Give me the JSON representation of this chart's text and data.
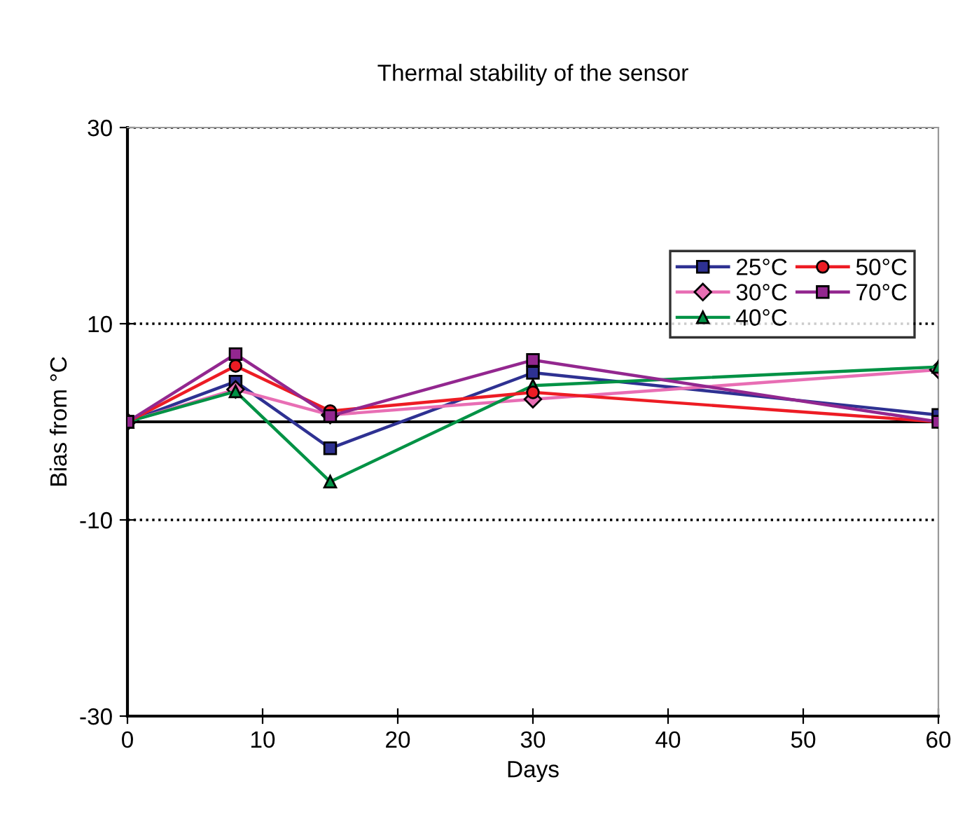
{
  "chart_data": {
    "type": "line",
    "title": "Thermal stability of the sensor",
    "xlabel": "Days",
    "ylabel": "Bias from °C",
    "x": [
      0,
      8,
      15,
      30,
      60
    ],
    "series": [
      {
        "name": "25°C",
        "color": "#2e3192",
        "marker": "square",
        "values": [
          0,
          4.1,
          -2.7,
          5.0,
          0.7
        ]
      },
      {
        "name": "30°C",
        "color": "#e86eb4",
        "marker": "diamond",
        "values": [
          0,
          3.3,
          0.7,
          2.3,
          5.3
        ]
      },
      {
        "name": "40°C",
        "color": "#009245",
        "marker": "triangle",
        "values": [
          0,
          3.1,
          -6.1,
          3.7,
          5.6
        ]
      },
      {
        "name": "50°C",
        "color": "#ed1c24",
        "marker": "circle",
        "values": [
          0,
          5.7,
          1.1,
          3.0,
          0
        ]
      },
      {
        "name": "70°C",
        "color": "#93278f",
        "marker": "square",
        "values": [
          0,
          6.9,
          0.6,
          6.3,
          0
        ]
      }
    ],
    "xlim": [
      0,
      60
    ],
    "xticks": [
      0,
      10,
      20,
      30,
      40,
      50,
      60
    ],
    "ylim": [
      -30,
      30
    ],
    "yticks": [
      -30,
      -10,
      10,
      30
    ],
    "ref_lines": [
      {
        "axis": "y",
        "value": 0,
        "label": null
      }
    ],
    "grid": "y",
    "legend": "top right",
    "line_style": "solid"
  }
}
